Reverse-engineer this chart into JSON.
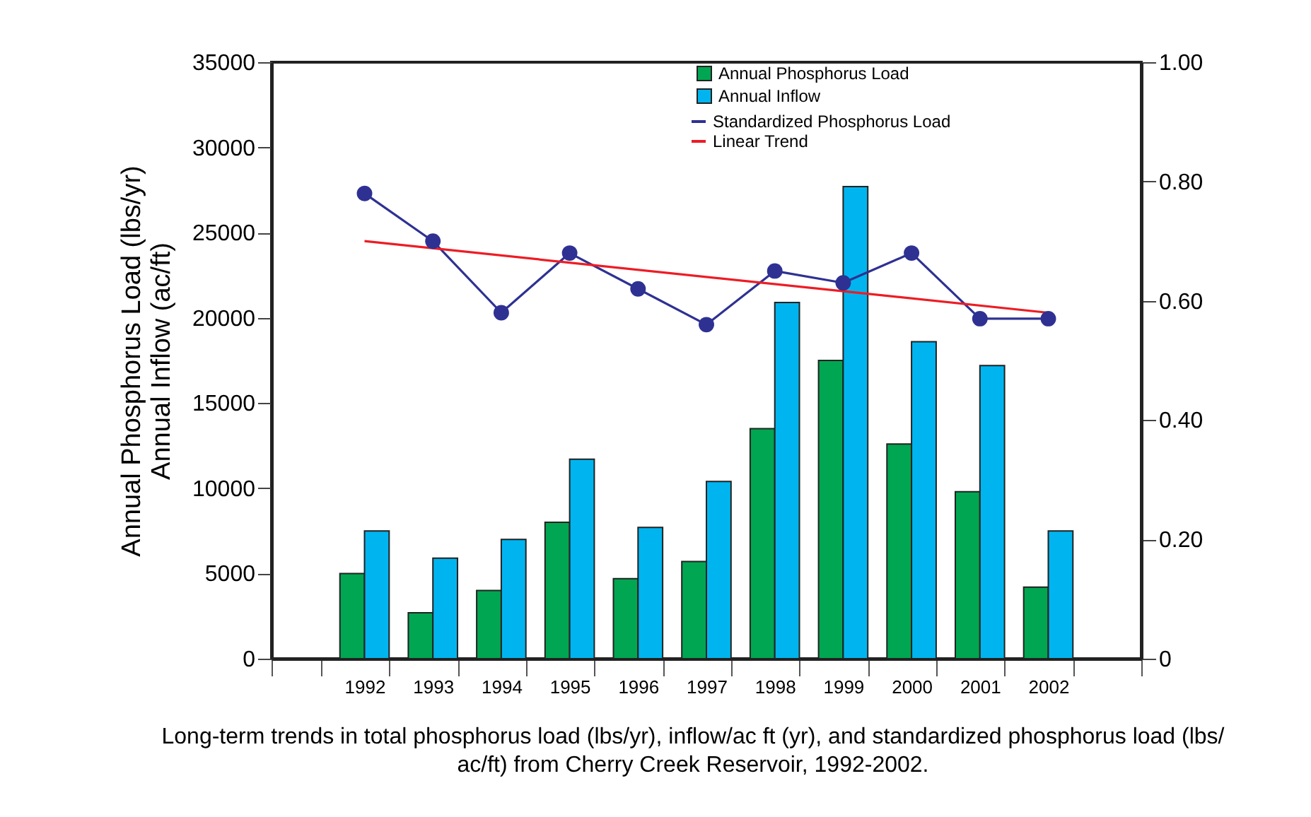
{
  "chart_data": {
    "type": "bar",
    "categories": [
      null,
      "1992",
      "1993",
      "1994",
      "1995",
      "1996",
      "1997",
      "1998",
      "1999",
      "2000",
      "2001",
      "2002",
      null
    ],
    "series": [
      {
        "name": "Annual Phosphorus Load",
        "color": "#00a651",
        "values": [
          null,
          5000,
          2700,
          4000,
          8000,
          4700,
          5700,
          13500,
          17500,
          12600,
          9800,
          4200,
          null
        ]
      },
      {
        "name": "Annual Inflow",
        "color": "#00b5ef",
        "values": [
          null,
          7500,
          5900,
          7000,
          11700,
          7700,
          10400,
          20900,
          27700,
          18600,
          17200,
          7500,
          null
        ]
      },
      {
        "name": "Standardized Phosphorus Load",
        "type": "line",
        "axis": "y2",
        "marker": "circle",
        "color": "#2e3192",
        "values": [
          null,
          0.78,
          0.7,
          0.58,
          0.68,
          0.62,
          0.56,
          0.65,
          0.63,
          0.68,
          0.57,
          0.57,
          null
        ]
      },
      {
        "name": "Linear Trend",
        "type": "line",
        "axis": "y2",
        "color": "#ed1c24",
        "values": [
          null,
          0.7,
          null,
          null,
          null,
          null,
          null,
          null,
          null,
          null,
          null,
          0.58,
          null
        ]
      }
    ],
    "ylabel": "Annual Phosphorus Load (lbs/yr)\nAnnual Inflow (ac/ft)",
    "ylim": [
      0,
      35000
    ],
    "yticks": [
      0,
      5000,
      10000,
      15000,
      20000,
      25000,
      30000,
      35000
    ],
    "y2lim": [
      0,
      1.0
    ],
    "y2ticks": [
      0,
      {
        "value": 0.2,
        "label": "0.20"
      },
      {
        "value": 0.4,
        "label": "0.40"
      },
      {
        "value": 0.6,
        "label": "0.60"
      },
      {
        "value": 0.8,
        "label": "0.80"
      },
      {
        "value": 1.0,
        "label": "1.00"
      }
    ],
    "legend": "top right",
    "grid": false,
    "annotations": [
      "Long-term trends in total phosphorus load (lbs/yr), inflow/ac ft (yr), and standardized phosphorus load (lbs/ ac/ft) from Cherry Creek Reservoir, 1992-2002."
    ]
  }
}
